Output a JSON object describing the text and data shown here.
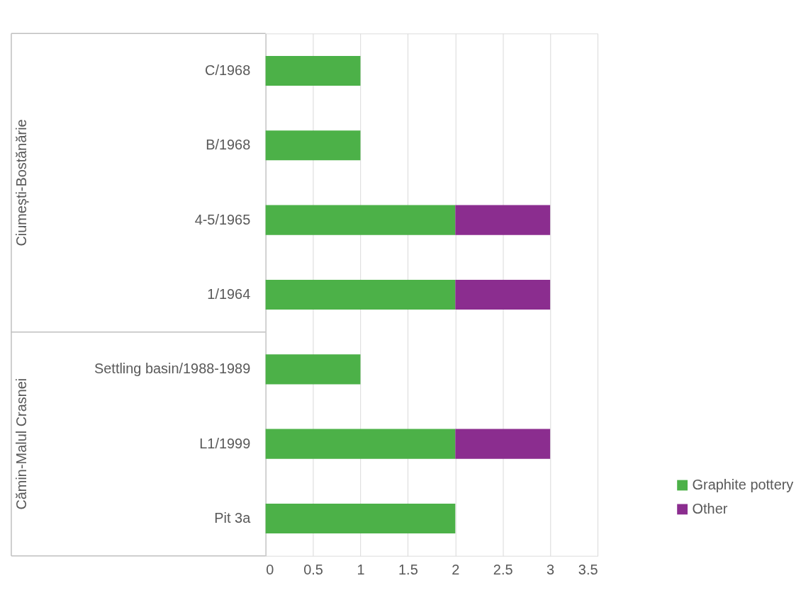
{
  "chart_data": {
    "type": "bar",
    "orientation": "horizontal",
    "stacked": true,
    "categories": [
      "C/1968",
      "B/1968",
      "4-5/1965",
      "1/1964",
      "Settling basin/1988-1989",
      "L1/1999",
      "Pit 3a"
    ],
    "series": [
      {
        "name": "Graphite pottery",
        "color": "#4cb148",
        "values": [
          1,
          1,
          2,
          2,
          1,
          2,
          2
        ]
      },
      {
        "name": "Other",
        "color": "#8b2d8f",
        "values": [
          null,
          null,
          1,
          1,
          null,
          1,
          null
        ]
      }
    ],
    "xlim": [
      0,
      3.5
    ],
    "xticks": [
      0,
      0.5,
      1,
      1.5,
      2,
      2.5,
      3,
      3.5
    ],
    "grid": "x",
    "legend": "bottom right",
    "annotations": [
      "Ciumești-Bostănărie",
      "Cămin-Malul Crasnei"
    ]
  }
}
